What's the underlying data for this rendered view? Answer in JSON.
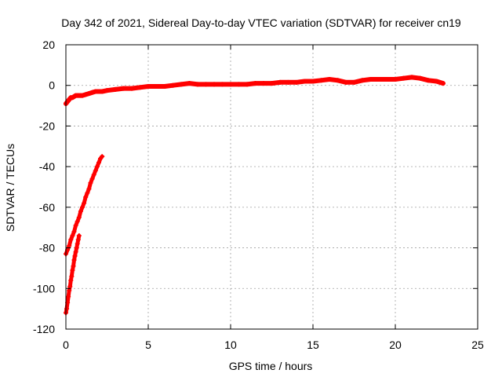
{
  "chart_data": {
    "type": "scatter",
    "title": "Day 342 of 2021, Sidereal Day-to-day VTEC variation (SDTVAR) for receiver cn19",
    "xlabel": "GPS time / hours",
    "ylabel": "SDTVAR / TECUs",
    "xlim": [
      0,
      25
    ],
    "ylim": [
      -120,
      20
    ],
    "xticks": [
      0,
      5,
      10,
      15,
      20,
      25
    ],
    "yticks": [
      -120,
      -100,
      -80,
      -60,
      -40,
      -20,
      0,
      20
    ],
    "grid": true,
    "legend": "none",
    "series_color": "#ff0000",
    "series": [
      {
        "x": [
          0.0,
          0.1,
          0.2,
          0.3,
          0.4,
          0.5,
          0.6,
          0.7,
          0.8,
          0.9,
          1.0,
          1.2,
          1.4,
          1.6,
          1.8,
          2.0,
          2.2,
          2.5,
          3.0,
          3.5,
          4.0,
          4.5,
          5.0,
          5.5,
          6.0,
          6.5,
          7.0,
          7.5,
          8.0,
          8.5,
          9.0,
          9.5,
          10.0,
          10.5,
          11.0,
          11.5,
          12.0,
          12.5,
          13.0,
          13.5,
          14.0,
          14.5,
          15.0,
          15.5,
          16.0,
          16.5,
          17.0,
          17.5,
          18.0,
          18.5,
          19.0,
          19.5,
          20.0,
          20.5,
          21.0,
          21.5,
          22.0,
          22.5,
          22.9
        ],
        "y": [
          -9,
          -8,
          -7,
          -6,
          -6,
          -5.5,
          -5,
          -5,
          -5,
          -5,
          -5,
          -4.5,
          -4,
          -3.5,
          -3,
          -3,
          -3,
          -2.5,
          -2,
          -1.5,
          -1.5,
          -1,
          -0.5,
          -0.5,
          -0.5,
          0,
          0.5,
          1,
          0.5,
          0.5,
          0.5,
          0.5,
          0.5,
          0.5,
          0.5,
          1,
          1,
          1,
          1.5,
          1.5,
          1.5,
          2,
          2,
          2.5,
          3,
          2.5,
          1.5,
          1.5,
          2.5,
          3,
          3,
          3,
          3,
          3.5,
          4,
          3.5,
          2.5,
          2,
          1
        ]
      },
      {
        "x": [
          0.0,
          0.1,
          0.2,
          0.3,
          0.4,
          0.5,
          0.6,
          0.7,
          0.8,
          0.9,
          1.0,
          1.1,
          1.2,
          1.3,
          1.4,
          1.5,
          1.6,
          1.7,
          1.8,
          1.9,
          2.0,
          2.1,
          2.2
        ],
        "y": [
          -83,
          -81,
          -79,
          -76,
          -74,
          -72,
          -69,
          -67,
          -65,
          -62,
          -60,
          -58,
          -55,
          -53,
          -51,
          -48,
          -46,
          -44,
          -42,
          -40,
          -38,
          -36,
          -35
        ]
      },
      {
        "x": [
          0.0,
          0.05,
          0.1,
          0.15,
          0.2,
          0.25,
          0.3,
          0.35,
          0.4,
          0.45,
          0.5,
          0.55,
          0.6,
          0.65,
          0.7,
          0.75,
          0.8
        ],
        "y": [
          -112,
          -110,
          -107,
          -104,
          -101,
          -99,
          -96,
          -94,
          -91,
          -89,
          -86,
          -84,
          -82,
          -80,
          -78,
          -76,
          -74
        ]
      }
    ]
  }
}
